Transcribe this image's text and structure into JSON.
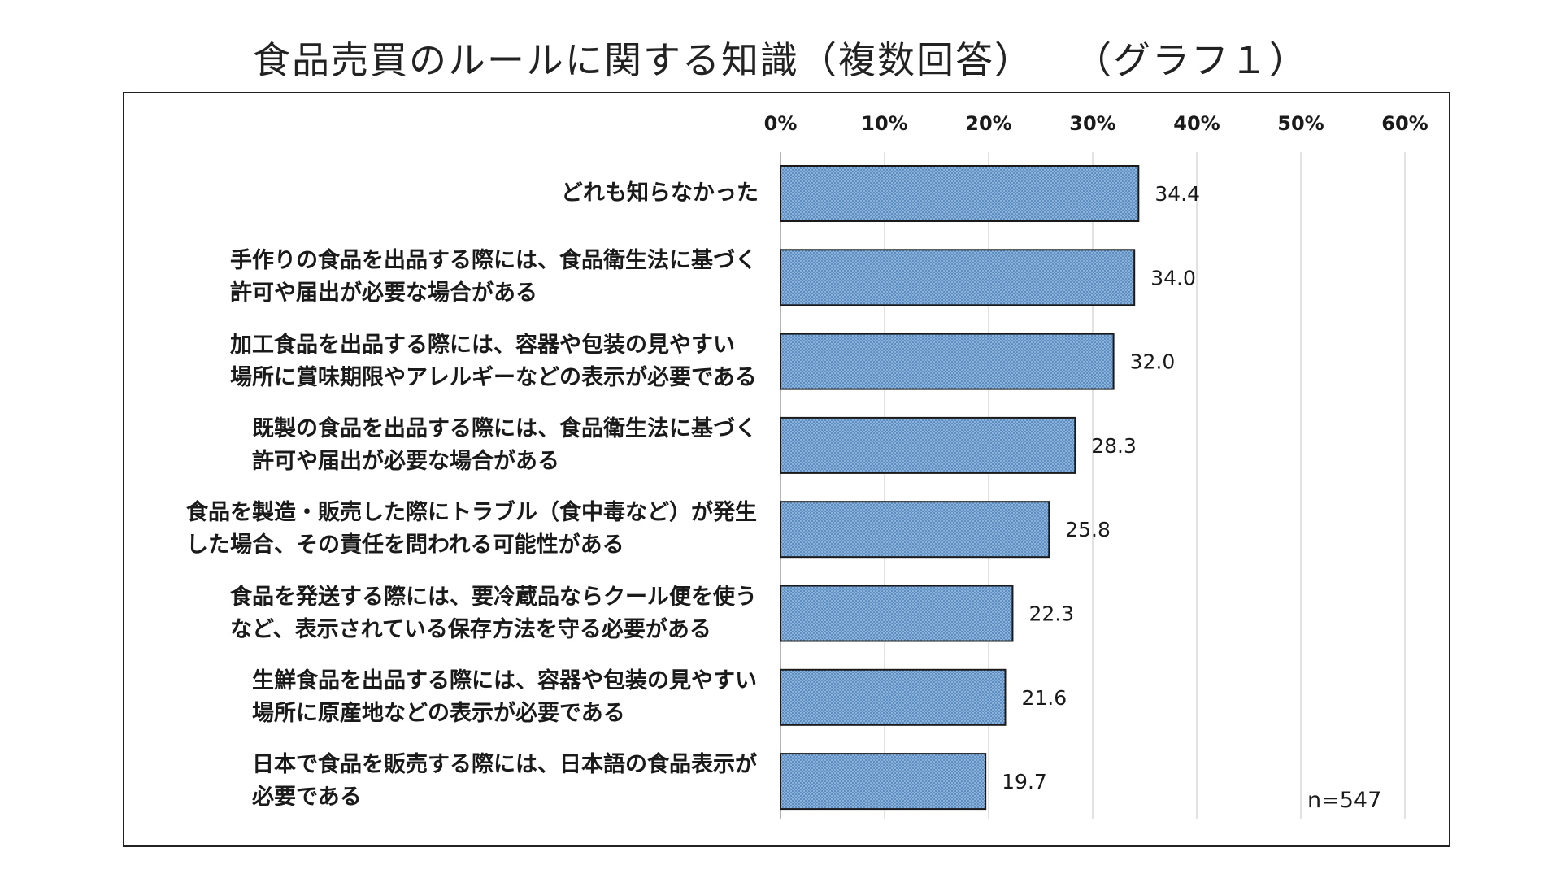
{
  "title": "食品売買のルールに関する知識（複数回答）　　（グラフ１）",
  "sample_size": "n=547",
  "colors": {
    "bar_fill": "#5b8ec4",
    "bar_stroke": "#1a1a1a",
    "grid": "#d9d9d9"
  },
  "chart_data": {
    "type": "bar",
    "orientation": "horizontal",
    "title": "食品売買のルールに関する知識（複数回答）　　（グラフ１）",
    "xlabel": "",
    "ylabel": "",
    "xlim": [
      0,
      60
    ],
    "tick_values": [
      0,
      10,
      20,
      30,
      40,
      50,
      60
    ],
    "tick_labels": [
      "0%",
      "10%",
      "20%",
      "30%",
      "40%",
      "50%",
      "60%"
    ],
    "grid": true,
    "categories": [
      "どれも知らなかった",
      "手作りの食品を出品する際には、食品衛生法に基づく\n許可や届出が必要な場合がある",
      "加工食品を出品する際には、容器や包装の見やすい\n場所に賞味期限やアレルギーなどの表示が必要である",
      "既製の食品を出品する際には、食品衛生法に基づく\n許可や届出が必要な場合がある",
      "食品を製造・販売した際にトラブル（食中毒など）が発生\nした場合、その責任を問われる可能性がある",
      "食品を発送する際には、要冷蔵品ならクール便を使う\nなど、表示されている保存方法を守る必要がある",
      "生鮮食品を出品する際には、容器や包装の見やすい\n場所に原産地などの表示が必要である",
      "日本で食品を販売する際には、日本語の食品表示が\n必要である"
    ],
    "values": [
      34.4,
      34.0,
      32.0,
      28.3,
      25.8,
      22.3,
      21.6,
      19.7
    ],
    "value_labels": [
      "34.4",
      "34.0",
      "32.0",
      "28.3",
      "25.8",
      "22.3",
      "21.6",
      "19.7"
    ]
  }
}
